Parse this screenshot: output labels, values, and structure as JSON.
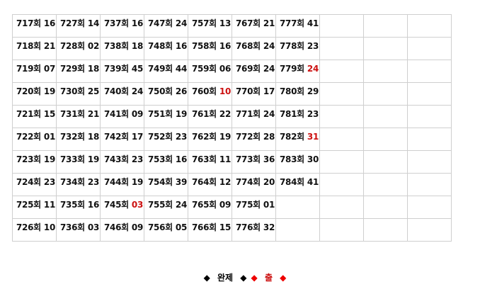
{
  "suffix": "회",
  "columns": [
    {
      "start": 717,
      "values": [
        "16",
        "21",
        "07",
        "19",
        "15",
        "01",
        "19",
        "23",
        "11",
        "10"
      ],
      "red": []
    },
    {
      "start": 727,
      "values": [
        "14",
        "02",
        "18",
        "25",
        "21",
        "18",
        "19",
        "23",
        "16",
        "03"
      ],
      "red": []
    },
    {
      "start": 737,
      "values": [
        "16",
        "18",
        "45",
        "24",
        "09",
        "17",
        "23",
        "19",
        "03",
        "09"
      ],
      "red": [
        8
      ]
    },
    {
      "start": 747,
      "values": [
        "24",
        "16",
        "44",
        "26",
        "19",
        "23",
        "16",
        "39",
        "24",
        "05"
      ],
      "red": []
    },
    {
      "start": 757,
      "values": [
        "13",
        "16",
        "06",
        "10",
        "22",
        "19",
        "11",
        "12",
        "09",
        "15"
      ],
      "red": [
        3
      ]
    },
    {
      "start": 767,
      "values": [
        "21",
        "24",
        "24",
        "17",
        "24",
        "28",
        "36",
        "20",
        "01",
        "32"
      ],
      "red": []
    },
    {
      "start": 777,
      "values": [
        "41",
        "23",
        "24",
        "29",
        "23",
        "31",
        "30",
        "41"
      ],
      "red": [
        2,
        5
      ]
    },
    {
      "start": null,
      "values": [],
      "red": []
    },
    {
      "start": null,
      "values": [],
      "red": []
    },
    {
      "start": null,
      "values": [],
      "red": []
    }
  ],
  "legend": {
    "complete_label": "완제",
    "draw_label": "출",
    "diamond": "◆",
    "complete_color": "#000000",
    "draw_color": "#ee0000"
  },
  "colors": {
    "highlight": "#cc1111",
    "grid": "#cfcfcf"
  }
}
